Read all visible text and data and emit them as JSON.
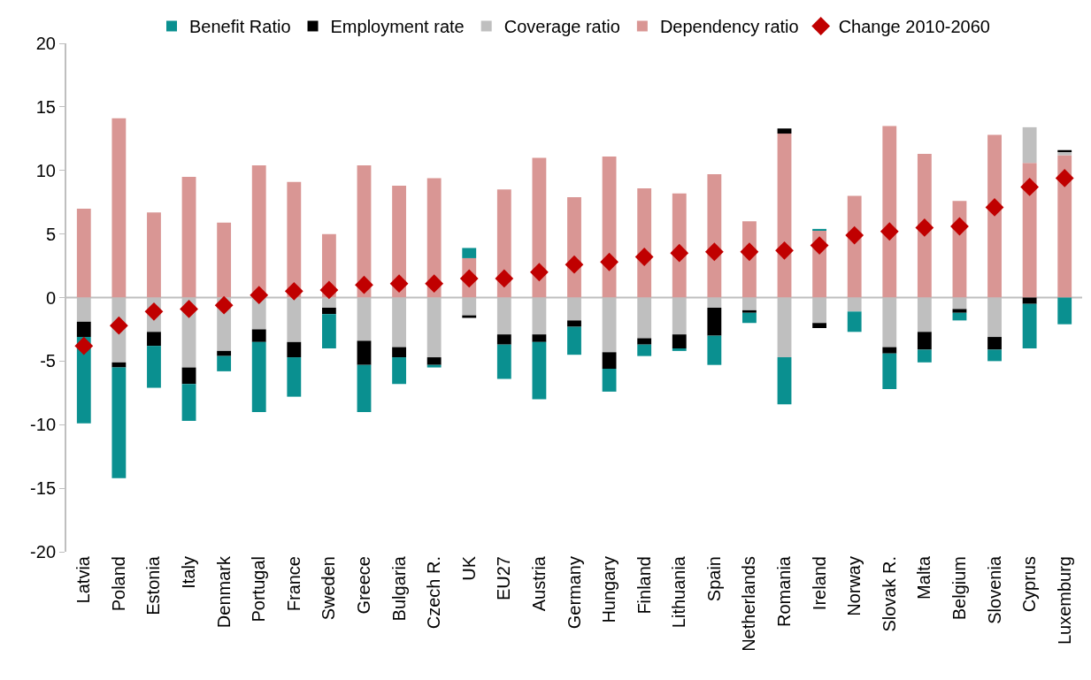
{
  "chart_data": {
    "type": "bar",
    "stacked": true,
    "categories": [
      "Latvia",
      "Poland",
      "Estonia",
      "Italy",
      "Denmark",
      "Portugal",
      "France",
      "Sweden",
      "Greece",
      "Bulgaria",
      "Czech R.",
      "UK",
      "EU27",
      "Austria",
      "Germany",
      "Hungary",
      "Finland",
      "Lithuania",
      "Spain",
      "Netherlands",
      "Romania",
      "Ireland",
      "Norway",
      "Slovak R.",
      "Malta",
      "Belgium",
      "Slovenia",
      "Cyprus",
      "Luxemburg"
    ],
    "series": [
      {
        "name": "Dependency ratio",
        "color": "#d99694",
        "values": [
          7.0,
          14.1,
          6.7,
          9.5,
          5.9,
          10.4,
          9.1,
          5.0,
          10.4,
          8.8,
          9.4,
          3.1,
          8.5,
          11.0,
          7.9,
          11.1,
          8.6,
          8.2,
          9.7,
          6.0,
          12.9,
          5.3,
          8.0,
          13.5,
          11.3,
          7.6,
          12.8,
          10.6,
          11.2
        ]
      },
      {
        "name": "Coverage ratio",
        "color": "#bfbfbf",
        "values": [
          -1.9,
          -5.1,
          -2.7,
          -5.5,
          -4.2,
          -2.5,
          -3.5,
          -0.8,
          -3.4,
          -3.9,
          -4.7,
          -1.4,
          -2.9,
          -2.9,
          -1.8,
          -4.3,
          -3.2,
          -2.9,
          -0.8,
          -1.0,
          -4.7,
          -2.0,
          -1.1,
          -3.9,
          -2.7,
          -0.9,
          -3.1,
          2.8,
          0.3
        ]
      },
      {
        "name": "Employment rate",
        "color": "#000000",
        "values": [
          -1.2,
          -0.4,
          -1.1,
          -1.3,
          -0.4,
          -1.0,
          -1.2,
          -0.5,
          -1.9,
          -0.8,
          -0.6,
          -0.2,
          -0.8,
          -0.6,
          -0.5,
          -1.3,
          -0.5,
          -1.1,
          -2.2,
          -0.2,
          0.4,
          -0.4,
          null,
          -0.5,
          -1.4,
          -0.3,
          -1.0,
          -0.5,
          0.1
        ]
      },
      {
        "name": "Benefit Ratio",
        "color": "#0a9090",
        "values": [
          -6.8,
          -8.7,
          -3.3,
          -2.9,
          -1.2,
          -5.5,
          -3.1,
          -2.7,
          -3.7,
          -2.1,
          -0.2,
          0.8,
          -2.7,
          -4.5,
          -2.2,
          -1.8,
          -0.9,
          -0.2,
          -2.3,
          -0.8,
          -3.7,
          0.1,
          -1.6,
          -2.8,
          -1.0,
          -0.6,
          -0.9,
          -3.5,
          -2.1
        ]
      },
      {
        "name": "Change 2010-2060",
        "type": "scatter",
        "marker": "diamond",
        "color": "#c00000",
        "values": [
          -3.8,
          -2.2,
          -1.1,
          -0.9,
          -0.6,
          0.2,
          0.5,
          0.6,
          1.0,
          1.1,
          1.1,
          1.5,
          1.5,
          2.0,
          2.6,
          2.8,
          3.2,
          3.5,
          3.6,
          3.6,
          3.7,
          4.1,
          4.9,
          5.2,
          5.5,
          5.6,
          7.1,
          8.7,
          9.4
        ]
      }
    ],
    "ylim": [
      -20,
      20
    ],
    "yticks": [
      -20,
      -15,
      -10,
      -5,
      0,
      5,
      10,
      15,
      20
    ],
    "grid": false,
    "legend": "top",
    "ref_lines": [
      {
        "axis": "y",
        "value": 0,
        "color": "#bfbfbf"
      }
    ]
  }
}
